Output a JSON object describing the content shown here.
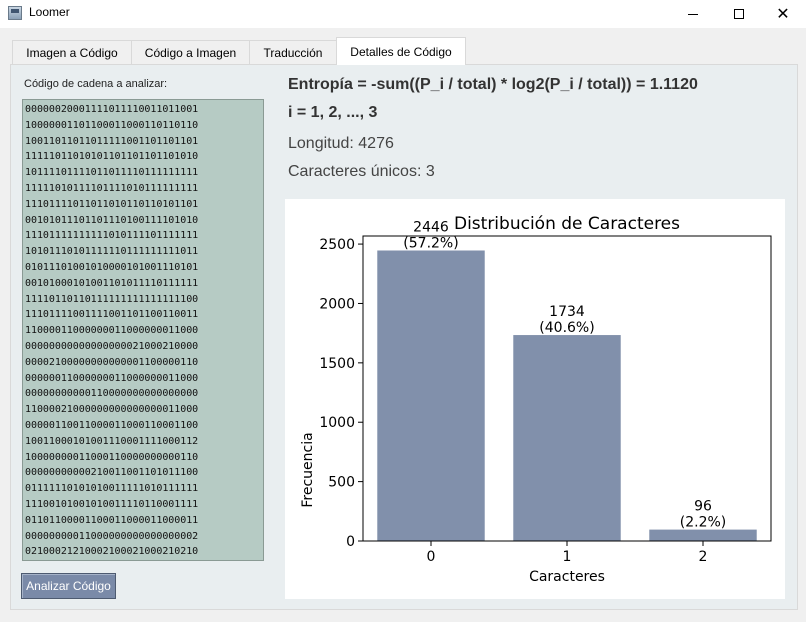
{
  "window": {
    "title": "Loomer"
  },
  "tabs": [
    {
      "label": "Imagen a Código",
      "active": false
    },
    {
      "label": "Código a Imagen",
      "active": false
    },
    {
      "label": "Traducción",
      "active": false
    },
    {
      "label": "Detalles de Código",
      "active": true
    }
  ],
  "left_panel": {
    "label": "Código de cadena a analizar:",
    "code_lines": [
      "00000020001111011110011011001",
      "10000001101100011000110110110",
      "10011011011011111001101101101",
      "11111011010101101101101101010",
      "10111101111011011110111111111",
      "11111010111101111010111111111",
      "11101111011011010110110101101",
      "00101011101101110100111101010",
      "11101111111111010111101111111",
      "10101110101111110111111111011",
      "01011101001010000101001110101",
      "00101000101001101011110111111",
      "11110110110111111111111111100",
      "11101111001111001101100110011",
      "11000011000000011000000011000",
      "00000000000000000021000210000",
      "00002100000000000001100000110",
      "00000011000000011000000011000",
      "00000000000110000000000000000",
      "11000021000000000000000011000",
      "00000110011000011000110001100",
      "10011000101001110001111000112",
      "10000000011000110000000000110",
      "00000000000210011001101011100",
      "01111110101010011111010111111",
      "11100101001010011110110001111",
      "01101100001100011000011000011",
      "00000000011000000000000000002",
      "02100021210002100021000210210"
    ],
    "analyze_button": "Analizar Código"
  },
  "info": {
    "entropy": "Entropía = -sum((P_i / total) * log2(P_i / total)) = 1.1120",
    "i_range": "i = 1, 2, ..., 3",
    "length": "Longitud: 4276",
    "unique_chars": "Caracteres únicos: 3"
  },
  "chart_data": {
    "type": "bar",
    "title": "Distribución de Caracteres",
    "xlabel": "Caracteres",
    "ylabel": "Frecuencia",
    "categories": [
      "0",
      "1",
      "2"
    ],
    "values": [
      2446,
      1734,
      96
    ],
    "value_labels": [
      "2446",
      "1734",
      "96"
    ],
    "percent_labels": [
      "(57.2%)",
      "(40.6%)",
      "(2.2%)"
    ],
    "yticks": [
      0,
      500,
      1000,
      1500,
      2000,
      2500
    ],
    "ylim": [
      0,
      2568
    ],
    "bar_color": "#8190ab",
    "grid": false,
    "legend": "none"
  }
}
